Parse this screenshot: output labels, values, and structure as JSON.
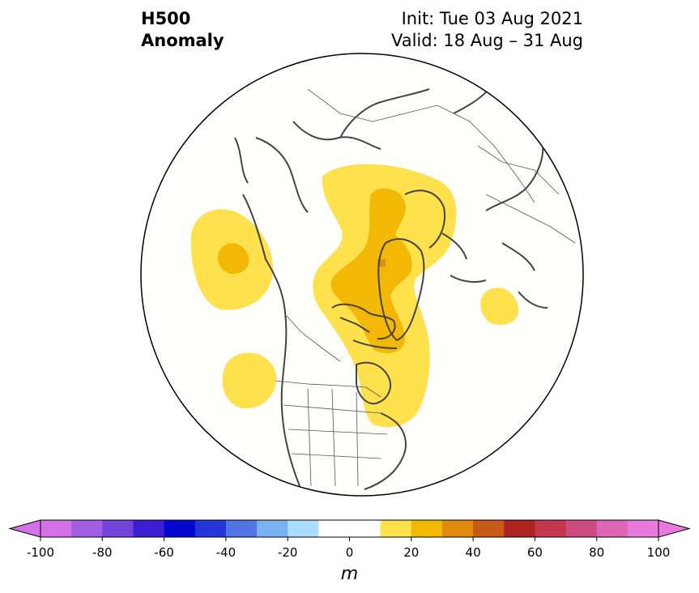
{
  "title": {
    "line1": "H500",
    "line2": "Anomaly"
  },
  "init": {
    "line1": "Init: Tue 03 Aug 2021",
    "line2": "Valid: 18 Aug – 31 Aug"
  },
  "colorbar": {
    "unit": "m",
    "tick_labels": [
      "-100",
      "-80",
      "-60",
      "-40",
      "-20",
      "0",
      "20",
      "40",
      "60",
      "80",
      "100"
    ],
    "colors": [
      "#d571e8",
      "#a25ee0",
      "#7244d9",
      "#3e1ed3",
      "#0206d0",
      "#2535d9",
      "#5275e6",
      "#78b2f2",
      "#acdcfe",
      "#ffffff",
      "#ffffff",
      "#ffe04d",
      "#f2b805",
      "#e08b10",
      "#c85918",
      "#ad2322",
      "#c4364c",
      "#cc4c7f",
      "#dd66b4",
      "#e87ade"
    ],
    "min": -100,
    "max": 100,
    "step": 10
  },
  "map": {
    "projection": "north polar stereographic",
    "region": "Northern Hemisphere (North America / Arctic)",
    "anomaly_levels": {
      "10-20 m": "#ffe04d",
      "20-30 m": "#f2b805",
      "30-40 m": "#e08b10"
    }
  }
}
